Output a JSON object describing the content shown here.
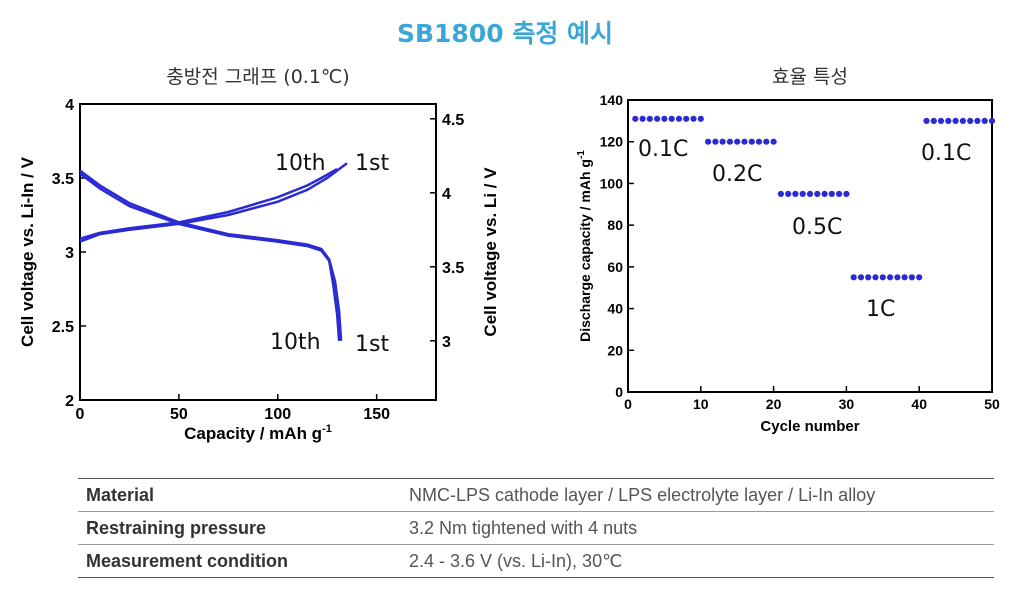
{
  "title": "SB1800 측정 예시",
  "colors": {
    "title": "#3aa7d8",
    "series": "#2b2bd4",
    "table_label": "#333333",
    "table_value": "#555555"
  },
  "chart_data": [
    {
      "type": "line",
      "subtitle": "충방전 그래프 (0.1℃)",
      "xlabel": "Capacity / mAh g",
      "xlabel_sup": "-1",
      "ylabel_left": "Cell voltage vs. Li-In / V",
      "ylabel_right": "Cell voltage vs. Li / V",
      "xlim": [
        0,
        180
      ],
      "ylim_left": [
        2,
        4
      ],
      "ylim_right": [
        2.6,
        4.6
      ],
      "xticks": [
        "0",
        "50",
        "100",
        "150"
      ],
      "yticks_left": [
        "2",
        "2.5",
        "3",
        "3.5",
        "4"
      ],
      "yticks_right": [
        "3",
        "3.5",
        "4",
        "4.5"
      ],
      "series": [
        {
          "name": "charge 1st",
          "x": [
            0,
            10,
            25,
            50,
            75,
            100,
            115,
            125,
            135
          ],
          "y": [
            3.07,
            3.12,
            3.15,
            3.19,
            3.25,
            3.34,
            3.42,
            3.5,
            3.6
          ]
        },
        {
          "name": "charge 10th",
          "x": [
            0,
            10,
            25,
            50,
            75,
            100,
            115,
            122,
            130
          ],
          "y": [
            3.09,
            3.13,
            3.16,
            3.2,
            3.27,
            3.37,
            3.45,
            3.5,
            3.56
          ]
        },
        {
          "name": "discharge 1st",
          "x": [
            0,
            10,
            25,
            50,
            75,
            100,
            115,
            122,
            126,
            129,
            131,
            132
          ],
          "y": [
            3.55,
            3.45,
            3.33,
            3.2,
            3.12,
            3.08,
            3.05,
            3.02,
            2.95,
            2.8,
            2.6,
            2.4
          ]
        },
        {
          "name": "discharge 10th",
          "x": [
            0,
            10,
            25,
            50,
            75,
            100,
            115,
            122,
            126,
            128,
            130,
            131
          ],
          "y": [
            3.53,
            3.43,
            3.31,
            3.19,
            3.11,
            3.07,
            3.04,
            3.01,
            2.94,
            2.78,
            2.58,
            2.4
          ]
        }
      ],
      "annotations": [
        "10th",
        "1st",
        "10th",
        "1st"
      ]
    },
    {
      "type": "scatter",
      "subtitle": "효율 특성",
      "xlabel": "Cycle number",
      "ylabel": "Discharge capacity / mAh g",
      "ylabel_sup": "-1",
      "xlim": [
        0,
        50
      ],
      "ylim": [
        0,
        140
      ],
      "xticks": [
        "0",
        "10",
        "20",
        "30",
        "40",
        "50"
      ],
      "yticks": [
        "0",
        "20",
        "40",
        "60",
        "80",
        "100",
        "120",
        "140"
      ],
      "groups": [
        {
          "label": "0.1C",
          "x": [
            1,
            2,
            3,
            4,
            5,
            6,
            7,
            8,
            9,
            10
          ],
          "y": 131
        },
        {
          "label": "0.2C",
          "x": [
            11,
            12,
            13,
            14,
            15,
            16,
            17,
            18,
            19,
            20
          ],
          "y": 120
        },
        {
          "label": "0.5C",
          "x": [
            21,
            22,
            23,
            24,
            25,
            26,
            27,
            28,
            29,
            30
          ],
          "y": 95
        },
        {
          "label": "1C",
          "x": [
            31,
            32,
            33,
            34,
            35,
            36,
            37,
            38,
            39,
            40
          ],
          "y": 55
        },
        {
          "label": "0.1C",
          "x": [
            41,
            42,
            43,
            44,
            45,
            46,
            47,
            48,
            49,
            50
          ],
          "y": 130
        }
      ]
    }
  ],
  "table": {
    "rows": [
      {
        "label": "Material",
        "value": "NMC-LPS cathode layer / LPS electrolyte layer / Li-In alloy"
      },
      {
        "label": "Restraining pressure",
        "value": "3.2 Nm tightened with 4 nuts"
      },
      {
        "label": "Measurement condition",
        "value": "2.4 - 3.6 V (vs. Li-In), 30℃"
      }
    ]
  }
}
